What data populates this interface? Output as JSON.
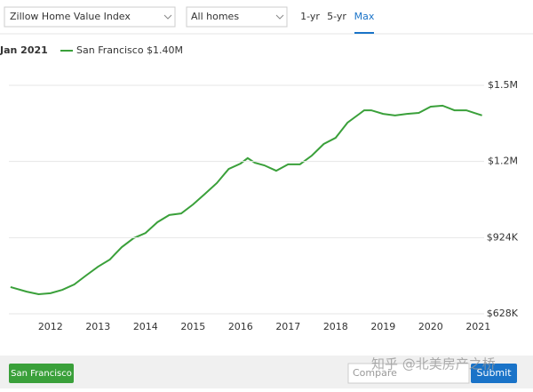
{
  "ui": {
    "index_select": "Zillow Home Value Index",
    "home_select": "All homes",
    "range_tabs": [
      "1-yr",
      "5-yr",
      "Max"
    ],
    "active_tab": 2,
    "region_button": "San Francisco",
    "compare_placeholder": "Compare",
    "submit_button": "Submit",
    "watermark": "知乎 @北美房产之桥"
  },
  "chart_data": {
    "type": "line",
    "hover_label": "Jan 2021",
    "x": [
      2011.16,
      2011.5,
      2011.75,
      2012,
      2012.25,
      2012.5,
      2012.75,
      2013,
      2013.25,
      2013.5,
      2013.75,
      2014,
      2014.25,
      2014.5,
      2014.75,
      2015,
      2015.25,
      2015.5,
      2015.75,
      2016,
      2016.15,
      2016.3,
      2016.5,
      2016.75,
      2017,
      2017.25,
      2017.5,
      2017.75,
      2018,
      2018.25,
      2018.5,
      2018.6,
      2018.75,
      2019,
      2019.25,
      2019.5,
      2019.75,
      2020,
      2020.25,
      2020.5,
      2020.75,
      2021.08
    ],
    "series": [
      {
        "name": "San Francisco $1.40M",
        "color": "#3aa03a",
        "values": [
          732000,
          714000,
          704000,
          708000,
          721000,
          742000,
          777000,
          811000,
          839000,
          887000,
          922000,
          942000,
          984000,
          1012000,
          1018000,
          1053000,
          1094000,
          1136000,
          1191000,
          1212000,
          1233000,
          1215000,
          1205000,
          1184000,
          1209000,
          1209000,
          1243000,
          1288000,
          1312000,
          1371000,
          1405000,
          1419000,
          1419000,
          1405000,
          1399000,
          1405000,
          1409000,
          1433000,
          1437000,
          1419000,
          1419000,
          1399000
        ]
      }
    ],
    "xlim": [
      2011.125,
      2021.125
    ],
    "xticks": [
      2012,
      2013,
      2014,
      2015,
      2016,
      2017,
      2018,
      2019,
      2020,
      2021
    ],
    "ylim": [
      628000,
      1516000
    ],
    "yticks": [
      {
        "value": 628000,
        "label": "$628K"
      },
      {
        "value": 924000,
        "label": "$924K"
      },
      {
        "value": 1220000,
        "label": "$1.2M"
      },
      {
        "value": 1516000,
        "label": "$1.5M"
      }
    ],
    "grid": true
  }
}
